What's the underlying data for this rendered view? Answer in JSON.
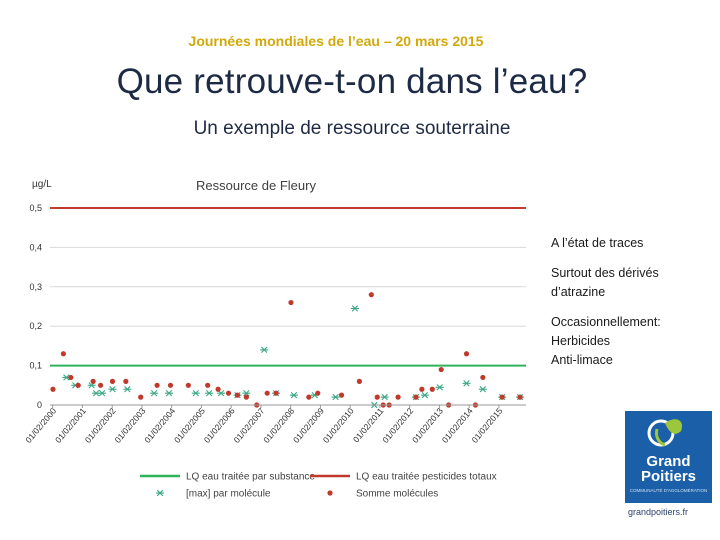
{
  "header": {
    "event": "Journées mondiales de l’eau – 20 mars 2015",
    "title": "Que retrouve-t-on dans l’eau?",
    "subtitle": "Un exemple de ressource souterraine"
  },
  "notes": {
    "line1": "A l’état de traces",
    "line2a": "Surtout des dérivés",
    "line2b": "d’atrazine",
    "line3a": "Occasionnellement:",
    "line3b": "Herbicides",
    "line3c": "Anti-limace"
  },
  "logo": {
    "line1": "Grand",
    "line2": "Poitiers",
    "tagline": "COMMUNAUTÉ D'AGGLOMÉRATION",
    "url": "grandpoitiers.fr"
  },
  "colors": {
    "green": "#2fb35a",
    "red": "#c0392b",
    "marker_green": "#3aa886",
    "marker_red": "#c0392b",
    "grid": "#d9d9d9"
  },
  "chart_data": {
    "type": "scatter",
    "title": "Ressource de Fleury",
    "ylabel": "µg/L",
    "ylim": [
      0,
      0.5
    ],
    "xlim": [
      "2000-01-01",
      "2015-12-31"
    ],
    "yticks": [
      "0",
      "0,1",
      "0,2",
      "0,3",
      "0,4",
      "0,5"
    ],
    "xticks": [
      "01/02/2000",
      "01/02/2001",
      "01/02/2002",
      "01/02/2003",
      "01/02/2004",
      "01/02/2005",
      "01/02/2006",
      "01/02/2007",
      "01/02/2008",
      "01/02/2009",
      "01/02/2010",
      "01/02/2011",
      "01/02/2012",
      "01/02/2013",
      "01/02/2014",
      "01/02/2015"
    ],
    "lines": [
      {
        "name": "LQ eau traitée par substance",
        "value": 0.1,
        "color": "#2fb35a"
      },
      {
        "name": "LQ eau traitée pesticides totaux",
        "value": 0.5,
        "color": "#c0392b"
      }
    ],
    "series": [
      {
        "name": "[max] par molécule",
        "marker": "asterisk",
        "points": [
          [
            2000.55,
            0.07
          ],
          [
            2000.85,
            0.05
          ],
          [
            2001.4,
            0.05
          ],
          [
            2001.55,
            0.03
          ],
          [
            2001.75,
            0.03
          ],
          [
            2002.1,
            0.04
          ],
          [
            2002.6,
            0.04
          ],
          [
            2003.5,
            0.03
          ],
          [
            2004.0,
            0.03
          ],
          [
            2004.9,
            0.03
          ],
          [
            2005.35,
            0.03
          ],
          [
            2005.75,
            0.03
          ],
          [
            2006.3,
            0.025
          ],
          [
            2006.6,
            0.03
          ],
          [
            2007.2,
            0.14
          ],
          [
            2007.6,
            0.03
          ],
          [
            2008.2,
            0.025
          ],
          [
            2008.9,
            0.025
          ],
          [
            2009.6,
            0.02
          ],
          [
            2010.25,
            0.245
          ],
          [
            2010.9,
            0.0
          ],
          [
            2011.25,
            0.02
          ],
          [
            2012.3,
            0.02
          ],
          [
            2012.6,
            0.025
          ],
          [
            2013.1,
            0.045
          ],
          [
            2014.0,
            0.055
          ],
          [
            2014.55,
            0.04
          ],
          [
            2015.2,
            0.02
          ],
          [
            2015.8,
            0.02
          ]
        ]
      },
      {
        "name": "Somme molécules",
        "marker": "dot",
        "points": [
          [
            2000.1,
            0.04
          ],
          [
            2000.45,
            0.13
          ],
          [
            2000.7,
            0.07
          ],
          [
            2000.95,
            0.05
          ],
          [
            2001.45,
            0.06
          ],
          [
            2001.7,
            0.05
          ],
          [
            2002.1,
            0.06
          ],
          [
            2002.55,
            0.06
          ],
          [
            2003.05,
            0.02
          ],
          [
            2003.6,
            0.05
          ],
          [
            2004.05,
            0.05
          ],
          [
            2004.65,
            0.05
          ],
          [
            2005.3,
            0.05
          ],
          [
            2005.65,
            0.04
          ],
          [
            2006.0,
            0.03
          ],
          [
            2006.3,
            0.025
          ],
          [
            2006.6,
            0.02
          ],
          [
            2006.95,
            0.0
          ],
          [
            2007.3,
            0.03
          ],
          [
            2007.6,
            0.03
          ],
          [
            2008.1,
            0.26
          ],
          [
            2008.7,
            0.02
          ],
          [
            2009.0,
            0.03
          ],
          [
            2009.8,
            0.025
          ],
          [
            2010.4,
            0.06
          ],
          [
            2010.8,
            0.28
          ],
          [
            2011.0,
            0.02
          ],
          [
            2011.2,
            0.0
          ],
          [
            2011.4,
            0.0
          ],
          [
            2011.7,
            0.02
          ],
          [
            2012.3,
            0.02
          ],
          [
            2012.5,
            0.04
          ],
          [
            2012.85,
            0.04
          ],
          [
            2013.15,
            0.09
          ],
          [
            2013.4,
            0.0
          ],
          [
            2014.0,
            0.13
          ],
          [
            2014.3,
            0.0
          ],
          [
            2014.55,
            0.07
          ],
          [
            2015.2,
            0.02
          ],
          [
            2015.8,
            0.02
          ]
        ]
      }
    ],
    "legend": "bottom"
  }
}
